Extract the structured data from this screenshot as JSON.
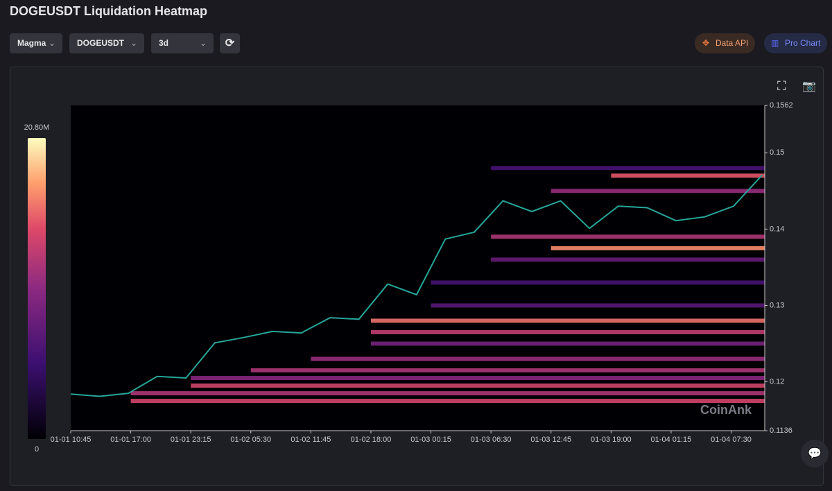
{
  "header": {
    "title": "DOGEUSDT Liquidation Heatmap"
  },
  "controls": {
    "palette": "Magma",
    "symbol": "DOGEUSDT",
    "range": "3d",
    "data_api": "Data API",
    "pro_chart": "Pro Chart"
  },
  "chart_data": {
    "type": "heatmap",
    "watermark": "CoinAnk",
    "xlim": [
      "01-01 10:45",
      "01-04 11:00"
    ],
    "xticks": [
      "01-01 10:45",
      "01-01 17:00",
      "01-01 23:15",
      "01-02 05:30",
      "01-02 11:45",
      "01-02 18:00",
      "01-03 00:15",
      "01-03 06:30",
      "01-03 12:45",
      "01-03 19:00",
      "01-04 01:15",
      "01-04 07:30"
    ],
    "ylim": [
      0.1136,
      0.1562
    ],
    "yticks": [
      0.1136,
      0.12,
      0.13,
      0.14,
      0.15,
      0.1562
    ],
    "zlim": [
      0,
      20800000
    ],
    "zticks": [
      0,
      {
        "value": 20800000,
        "label": "20.80M"
      }
    ],
    "price": {
      "name": "DOGEUSDT",
      "color": "#26a69a",
      "x": [
        "01-01 10:45",
        "01-01 13:45",
        "01-01 16:45",
        "01-01 19:45",
        "01-01 22:45",
        "01-02 01:45",
        "01-02 04:45",
        "01-02 07:45",
        "01-02 10:45",
        "01-02 13:45",
        "01-02 16:45",
        "01-02 19:45",
        "01-02 22:45",
        "01-03 01:45",
        "01-03 04:45",
        "01-03 07:45",
        "01-03 10:45",
        "01-03 13:45",
        "01-03 16:45",
        "01-03 19:45",
        "01-03 22:45",
        "01-04 01:45",
        "01-04 04:45",
        "01-04 07:45",
        "01-04 10:45"
      ],
      "values": [
        0.1184,
        0.1181,
        0.1185,
        0.1207,
        0.1205,
        0.1251,
        0.1258,
        0.1266,
        0.1264,
        0.1284,
        0.1282,
        0.1328,
        0.1314,
        0.1387,
        0.1396,
        0.1437,
        0.1423,
        0.1437,
        0.1401,
        0.143,
        0.1428,
        0.1411,
        0.1416,
        0.143,
        0.1471
      ]
    },
    "heatmap": {
      "price": [
        0.1175,
        0.1185,
        0.1195,
        0.1205,
        0.1215,
        0.123,
        0.125,
        0.1265,
        0.128,
        0.13,
        0.133,
        0.136,
        0.1375,
        0.139,
        0.145,
        0.147,
        0.148
      ],
      "start": [
        "01-01 17:00",
        "01-01 17:00",
        "01-01 23:15",
        "01-01 23:15",
        "01-02 05:30",
        "01-02 11:45",
        "01-02 18:00",
        "01-02 18:00",
        "01-02 18:00",
        "01-03 00:15",
        "01-03 00:15",
        "01-03 06:30",
        "01-03 12:45",
        "01-03 06:30",
        "01-03 12:45",
        "01-03 19:00",
        "01-03 06:30"
      ],
      "values": [
        14000000,
        12000000,
        14000000,
        10000000,
        12000000,
        11000000,
        9000000,
        13000000,
        16000000,
        7000000,
        6000000,
        8000000,
        17000000,
        12000000,
        11000000,
        15000000,
        6000000
      ]
    }
  }
}
